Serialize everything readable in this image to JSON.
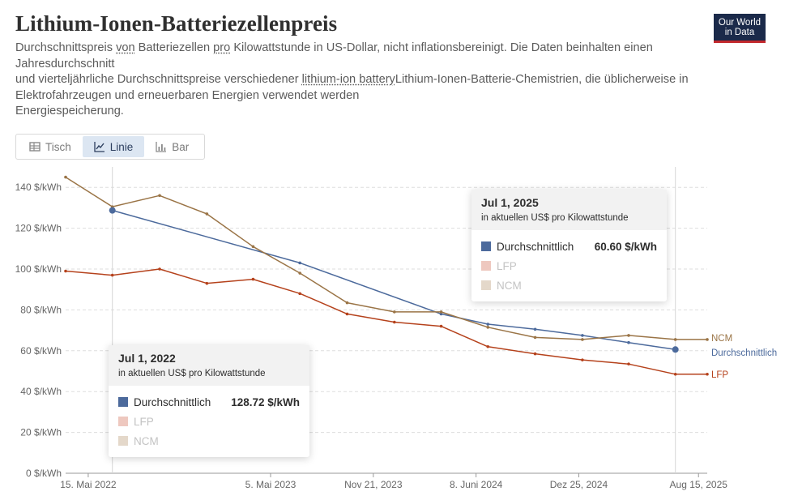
{
  "header": {
    "title": "Lithium-Ionen-Batteriezellenpreis",
    "subtitle_p1": "Durchschnittspreis ",
    "subtitle_link1": "von",
    "subtitle_p2": " Batteriezellen ",
    "subtitle_link2": "pro",
    "subtitle_p3": " Kilowattstunde in US-Dollar, nicht inflationsbereinigt. Die Daten beinhalten einen",
    "subtitle_line2": "Jahresdurchschnitt",
    "subtitle_p4": "und vierteljährliche Durchschnittspreise verschiedener ",
    "subtitle_link3": "lithium-ion battery",
    "subtitle_p5": "Lithium-Ionen-Batterie-Chemistrien, die üblicherweise in",
    "subtitle_line4": "Elektrofahrzeugen und erneuerbaren Energien verwendet werden",
    "subtitle_line5": "Energiespeicherung."
  },
  "logo": {
    "line1": "Our World",
    "line2": "in Data"
  },
  "tabs": [
    {
      "label": "Tisch",
      "icon": "table-icon",
      "active": false
    },
    {
      "label": "Linie",
      "icon": "line-chart-icon",
      "active": true
    },
    {
      "label": "Bar",
      "icon": "bar-chart-icon",
      "active": false
    }
  ],
  "colors": {
    "avg": "#4c6a9c",
    "lfp": "#b5421c",
    "ncm": "#9a7446",
    "lfp_swatch": "#e09a8a",
    "ncm_swatch": "#cdb89f",
    "grid": "#dddddd"
  },
  "chart_data": {
    "type": "line",
    "title": "Lithium-Ionen-Batteriezellenpreis",
    "ylabel": "$/kWh",
    "y_ticks": [
      0,
      20,
      40,
      60,
      80,
      100,
      120,
      140
    ],
    "y_tick_labels": [
      "0 $/kWh",
      "20 $/kWh",
      "40 $/kWh",
      "60 $/kWh",
      "80 $/kWh",
      "100 $/kWh",
      "120 $/kWh",
      "140 $/kWh"
    ],
    "ylim": [
      0,
      150
    ],
    "x_domain": [
      "2022-04-01",
      "2025-09-01"
    ],
    "x_ticks": [
      {
        "date": "2022-05-15",
        "label": "15. Mai 2022"
      },
      {
        "date": "2023-05-05",
        "label": "5. Mai 2023"
      },
      {
        "date": "2023-11-21",
        "label": "Nov 21, 2023"
      },
      {
        "date": "2024-06-08",
        "label": "8. Juni 2024"
      },
      {
        "date": "2024-12-25",
        "label": "Dez 25, 2024"
      },
      {
        "date": "2025-08-15",
        "label": "Aug 15, 2025"
      }
    ],
    "series": [
      {
        "name": "Durchschnittlich",
        "key": "avg",
        "end_label": "Durchschnittlich",
        "x": [
          "2022-07-01",
          "2023-07-01",
          "2024-04-01",
          "2024-07-01",
          "2024-10-01",
          "2025-01-01",
          "2025-04-01",
          "2025-07-01"
        ],
        "values": [
          128.72,
          103,
          78,
          73,
          70.5,
          67.5,
          64,
          60.6
        ]
      },
      {
        "name": "LFP",
        "key": "lfp",
        "end_label": "LFP",
        "x": [
          "2022-04-01",
          "2022-07-01",
          "2022-10-01",
          "2023-01-01",
          "2023-04-01",
          "2023-07-01",
          "2023-10-01",
          "2024-01-01",
          "2024-04-01",
          "2024-07-01",
          "2024-10-01",
          "2025-01-01",
          "2025-04-01",
          "2025-07-01",
          "2025-09-01"
        ],
        "values": [
          99,
          97,
          100,
          93,
          95,
          88,
          78,
          74,
          72,
          62,
          58.5,
          55.5,
          53.5,
          48.5,
          48.5
        ]
      },
      {
        "name": "NCM",
        "key": "ncm",
        "end_label": "NCM",
        "x": [
          "2022-04-01",
          "2022-07-01",
          "2022-10-01",
          "2023-01-01",
          "2023-04-01",
          "2023-07-01",
          "2023-10-01",
          "2024-01-01",
          "2024-04-01",
          "2024-07-01",
          "2024-10-01",
          "2025-01-01",
          "2025-04-01",
          "2025-07-01",
          "2025-09-01"
        ],
        "values": [
          145,
          130.5,
          136,
          127,
          111,
          98,
          83.5,
          79,
          79,
          71.5,
          66.5,
          65.5,
          67.5,
          65.5,
          65.5
        ]
      }
    ],
    "markers": [
      {
        "series": "avg",
        "date": "2022-07-01",
        "value": 128.72
      },
      {
        "series": "avg",
        "date": "2025-07-01",
        "value": 60.6
      }
    ],
    "hover_lines": [
      "2022-07-01",
      "2025-07-01"
    ]
  },
  "tooltips": [
    {
      "date": "Jul 1, 2022",
      "unit": "in aktuellen US$ pro Kilowattstunde",
      "rows": [
        {
          "name": "Durchschnittlich",
          "value": "128.72 $/kWh",
          "key": "avg"
        },
        {
          "name": "LFP",
          "value": "",
          "key": "lfp"
        },
        {
          "name": "NCM",
          "value": "",
          "key": "ncm"
        }
      ]
    },
    {
      "date": "Jul 1, 2025",
      "unit": "in aktuellen US$ pro Kilowattstunde",
      "rows": [
        {
          "name": "Durchschnittlich",
          "value": "60.60 $/kWh",
          "key": "avg"
        },
        {
          "name": "LFP",
          "value": "",
          "key": "lfp"
        },
        {
          "name": "NCM",
          "value": "",
          "key": "ncm"
        }
      ]
    }
  ]
}
